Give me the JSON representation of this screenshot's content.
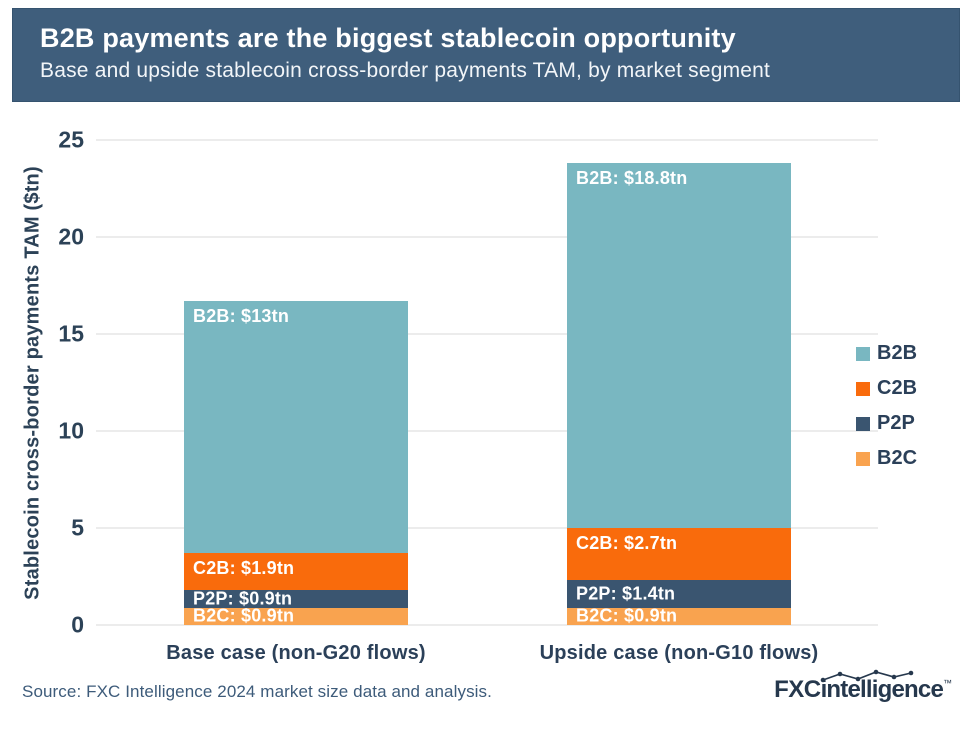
{
  "header": {
    "title": "B2B payments are the biggest stablecoin opportunity",
    "subtitle": "Base and upside stablecoin cross-border payments TAM, by market segment"
  },
  "chart_data": {
    "type": "bar",
    "stacked": true,
    "categories": [
      "Base case (non-G20 flows)",
      "Upside case (non-G10 flows)"
    ],
    "series": [
      {
        "name": "B2B",
        "color": "#79b7c1",
        "values": [
          13,
          18.8
        ],
        "labels": [
          "B2B: $13tn",
          "B2B: $18.8tn"
        ]
      },
      {
        "name": "C2B",
        "color": "#f96b0c",
        "values": [
          1.9,
          2.7
        ],
        "labels": [
          "C2B: $1.9tn",
          "C2B: $2.7tn"
        ]
      },
      {
        "name": "P2P",
        "color": "#3a5570",
        "values": [
          0.9,
          1.4
        ],
        "labels": [
          "P2P: $0.9tn",
          "P2P: $1.4tn"
        ]
      },
      {
        "name": "B2C",
        "color": "#f9a34f",
        "values": [
          0.9,
          0.9
        ],
        "labels": [
          "B2C: $0.9tn",
          "B2C: $0.9tn"
        ]
      }
    ],
    "totals": [
      16.7,
      23.8
    ],
    "ylabel": "Stablecoin cross-border payments TAM ($tn)",
    "xlabel": "",
    "ylim": [
      0,
      25
    ],
    "yticks": [
      0,
      5,
      10,
      15,
      20,
      25
    ],
    "grid": true,
    "legend_position": "right"
  },
  "footer": {
    "source": "Source: FXC Intelligence 2024 market size data and analysis.",
    "logo_fxc": "FXC",
    "logo_intelligence": "intelligence",
    "logo_tm": "™"
  },
  "colors": {
    "header_bg": "#3f5e7c",
    "axis_text": "#2c4257",
    "grid_line": "#ececec",
    "b2b": "#79b7c1",
    "c2b": "#f96b0c",
    "p2p": "#3a5570",
    "b2c": "#f9a34f"
  }
}
